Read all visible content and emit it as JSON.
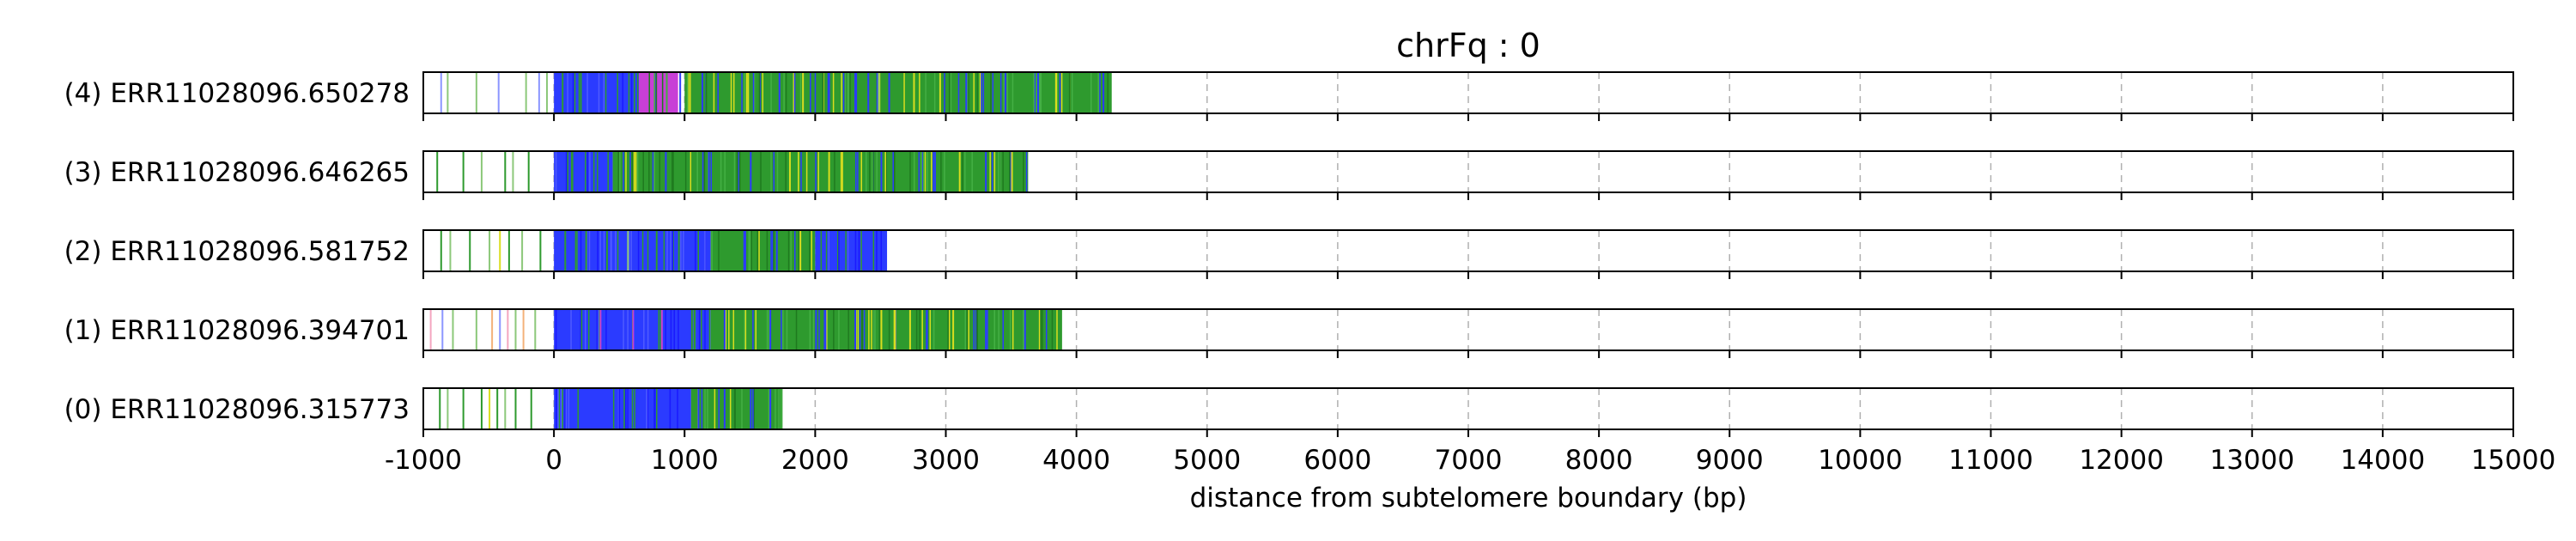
{
  "chart_data": {
    "type": "track",
    "title": "chrFq : 0",
    "xlabel": "distance from subtelomere boundary (bp)",
    "ylabel": "",
    "xlim": [
      -1000,
      15000
    ],
    "x_ticks": [
      -1000,
      0,
      1000,
      2000,
      3000,
      4000,
      5000,
      6000,
      7000,
      8000,
      9000,
      10000,
      11000,
      12000,
      13000,
      14000,
      15000
    ],
    "grid": "vertical dashed",
    "colors": {
      "blue": "#2b3bff",
      "green": "#2e9a2e",
      "yellow": "#d9dd1f",
      "magenta": "#c83fd6",
      "light_green": "#8cc87a",
      "light_blue": "#8c96ff",
      "pink": "#f4a6c0",
      "orange": "#f3b27a"
    },
    "tracks": [
      {
        "label": "(4) ERR11028096.650278",
        "read_end": 4270,
        "dense_segments": [
          {
            "start": 0,
            "end": 900,
            "color": "blue"
          },
          {
            "start": 650,
            "end": 950,
            "color": "magenta"
          },
          {
            "start": 1000,
            "end": 2850,
            "color": "green"
          },
          {
            "start": 2850,
            "end": 4270,
            "color": "green"
          }
        ],
        "marks": [
          {
            "pos": -870,
            "color": "light_blue"
          },
          {
            "pos": -820,
            "color": "light_green"
          },
          {
            "pos": -600,
            "color": "light_green"
          },
          {
            "pos": -430,
            "color": "light_blue"
          },
          {
            "pos": -220,
            "color": "light_green"
          },
          {
            "pos": -120,
            "color": "light_blue"
          },
          {
            "pos": -60,
            "color": "light_green"
          },
          {
            "pos": 60,
            "color": "green"
          },
          {
            "pos": 200,
            "color": "green"
          },
          {
            "pos": 960,
            "color": "blue"
          },
          {
            "pos": 1130,
            "color": "blue"
          },
          {
            "pos": 1480,
            "color": "yellow"
          },
          {
            "pos": 1720,
            "color": "blue"
          },
          {
            "pos": 1900,
            "color": "yellow"
          },
          {
            "pos": 2100,
            "color": "blue"
          },
          {
            "pos": 2300,
            "color": "blue"
          },
          {
            "pos": 2400,
            "color": "blue"
          },
          {
            "pos": 2480,
            "color": "light_green"
          },
          {
            "pos": 2560,
            "color": "blue"
          },
          {
            "pos": 2750,
            "color": "yellow"
          },
          {
            "pos": 2950,
            "color": "yellow"
          },
          {
            "pos": 3150,
            "color": "blue"
          },
          {
            "pos": 3450,
            "color": "blue"
          },
          {
            "pos": 3700,
            "color": "blue"
          },
          {
            "pos": 4200,
            "color": "blue"
          }
        ]
      },
      {
        "label": "(3) ERR11028096.646265",
        "read_end": 3630,
        "dense_segments": [
          {
            "start": 0,
            "end": 450,
            "color": "blue"
          },
          {
            "start": 450,
            "end": 3420,
            "color": "green"
          },
          {
            "start": 3420,
            "end": 3630,
            "color": "green"
          }
        ],
        "marks": [
          {
            "pos": -900,
            "color": "green"
          },
          {
            "pos": -700,
            "color": "green"
          },
          {
            "pos": -560,
            "color": "light_green"
          },
          {
            "pos": -380,
            "color": "green"
          },
          {
            "pos": -320,
            "color": "light_green"
          },
          {
            "pos": -200,
            "color": "green"
          },
          {
            "pos": 620,
            "color": "yellow"
          },
          {
            "pos": 850,
            "color": "blue"
          },
          {
            "pos": 1180,
            "color": "blue"
          },
          {
            "pos": 1500,
            "color": "blue"
          },
          {
            "pos": 1800,
            "color": "yellow"
          },
          {
            "pos": 2100,
            "color": "yellow"
          },
          {
            "pos": 2500,
            "color": "blue"
          },
          {
            "pos": 2900,
            "color": "blue"
          },
          {
            "pos": 3100,
            "color": "yellow"
          },
          {
            "pos": 3300,
            "color": "blue"
          },
          {
            "pos": 3500,
            "color": "yellow"
          }
        ]
      },
      {
        "label": "(2) ERR11028096.581752",
        "read_end": 2550,
        "dense_segments": [
          {
            "start": 0,
            "end": 1200,
            "color": "blue"
          },
          {
            "start": 1200,
            "end": 2000,
            "color": "green"
          },
          {
            "start": 2000,
            "end": 2550,
            "color": "blue"
          }
        ],
        "marks": [
          {
            "pos": -870,
            "color": "green"
          },
          {
            "pos": -800,
            "color": "light_green"
          },
          {
            "pos": -650,
            "color": "green"
          },
          {
            "pos": -500,
            "color": "light_green"
          },
          {
            "pos": -420,
            "color": "yellow"
          },
          {
            "pos": -350,
            "color": "green"
          },
          {
            "pos": -250,
            "color": "light_green"
          },
          {
            "pos": -110,
            "color": "green"
          },
          {
            "pos": 80,
            "color": "green"
          },
          {
            "pos": 240,
            "color": "green"
          },
          {
            "pos": 400,
            "color": "green"
          },
          {
            "pos": 560,
            "color": "light_green"
          },
          {
            "pos": 780,
            "color": "green"
          },
          {
            "pos": 950,
            "color": "green"
          },
          {
            "pos": 1450,
            "color": "blue"
          },
          {
            "pos": 1700,
            "color": "blue"
          },
          {
            "pos": 1880,
            "color": "yellow"
          }
        ]
      },
      {
        "label": "(1) ERR11028096.394701",
        "read_end": 3890,
        "dense_segments": [
          {
            "start": 0,
            "end": 1200,
            "color": "blue"
          },
          {
            "start": 1200,
            "end": 2450,
            "color": "green"
          },
          {
            "start": 2450,
            "end": 3890,
            "color": "green"
          }
        ],
        "marks": [
          {
            "pos": -950,
            "color": "pink"
          },
          {
            "pos": -860,
            "color": "light_blue"
          },
          {
            "pos": -780,
            "color": "light_green"
          },
          {
            "pos": -600,
            "color": "light_green"
          },
          {
            "pos": -480,
            "color": "orange"
          },
          {
            "pos": -420,
            "color": "light_blue"
          },
          {
            "pos": -360,
            "color": "pink"
          },
          {
            "pos": -300,
            "color": "light_green"
          },
          {
            "pos": -240,
            "color": "orange"
          },
          {
            "pos": -150,
            "color": "light_green"
          },
          {
            "pos": 350,
            "color": "magenta"
          },
          {
            "pos": 600,
            "color": "magenta"
          },
          {
            "pos": 820,
            "color": "magenta"
          },
          {
            "pos": 1050,
            "color": "green"
          },
          {
            "pos": 1300,
            "color": "blue"
          },
          {
            "pos": 1650,
            "color": "blue"
          },
          {
            "pos": 2000,
            "color": "blue"
          },
          {
            "pos": 2300,
            "color": "blue"
          },
          {
            "pos": 2500,
            "color": "yellow"
          },
          {
            "pos": 2600,
            "color": "yellow"
          },
          {
            "pos": 2720,
            "color": "yellow"
          },
          {
            "pos": 2850,
            "color": "blue"
          },
          {
            "pos": 3050,
            "color": "yellow"
          },
          {
            "pos": 3300,
            "color": "blue"
          },
          {
            "pos": 3600,
            "color": "blue"
          }
        ]
      },
      {
        "label": "(0) ERR11028096.315773",
        "read_end": 1750,
        "dense_segments": [
          {
            "start": 0,
            "end": 1050,
            "color": "blue"
          },
          {
            "start": 1050,
            "end": 1750,
            "color": "green"
          }
        ],
        "marks": [
          {
            "pos": -880,
            "color": "green"
          },
          {
            "pos": -820,
            "color": "light_green"
          },
          {
            "pos": -700,
            "color": "green"
          },
          {
            "pos": -560,
            "color": "green"
          },
          {
            "pos": -500,
            "color": "yellow"
          },
          {
            "pos": -440,
            "color": "green"
          },
          {
            "pos": -380,
            "color": "light_green"
          },
          {
            "pos": -300,
            "color": "green"
          },
          {
            "pos": -180,
            "color": "green"
          },
          {
            "pos": 1100,
            "color": "blue"
          },
          {
            "pos": 1300,
            "color": "blue"
          },
          {
            "pos": 1500,
            "color": "blue"
          },
          {
            "pos": 1650,
            "color": "blue"
          }
        ]
      }
    ]
  }
}
